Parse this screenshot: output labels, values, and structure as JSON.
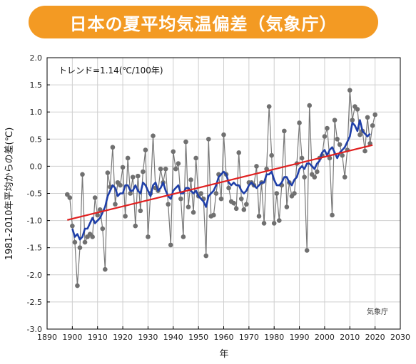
{
  "banner": {
    "title": "日本の夏平均気温偏差（気象庁）"
  },
  "chart_data": {
    "type": "line",
    "ylabel": "1981-2010年平均からの差(℃)",
    "xlabel": "年",
    "annotation": "トレンド=1.14(℃/100年)",
    "credit": "気象庁",
    "xlim": [
      1890,
      2030
    ],
    "ylim": [
      -3.0,
      2.0
    ],
    "x_ticks": [
      1890,
      1900,
      1910,
      1920,
      1930,
      1940,
      1950,
      1960,
      1970,
      1980,
      1990,
      2000,
      2010,
      2020,
      2030
    ],
    "y_ticks": [
      -3.0,
      -2.5,
      -2.0,
      -1.5,
      -1.0,
      -0.5,
      0.0,
      0.5,
      1.0,
      1.5,
      2.0
    ],
    "x_tick_labels": [
      "1890",
      "1900",
      "1910",
      "1920",
      "1930",
      "1940",
      "1950",
      "1960",
      "1970",
      "1980",
      "1990",
      "2000",
      "2010",
      "2020",
      "2030"
    ],
    "y_tick_labels": [
      "-3.0",
      "-2.5",
      "-2.0",
      "-1.5",
      "-1.0",
      "-0.5",
      "0.0",
      "0.5",
      "1.0",
      "1.5",
      "2.0"
    ],
    "grid": true,
    "colors": {
      "annual": "#777777",
      "moving_average": "#1f3fa8",
      "trend": "#e02020",
      "banner": "#f39a23"
    },
    "annual": {
      "x": [
        1898,
        1899,
        1900,
        1901,
        1902,
        1903,
        1904,
        1905,
        1906,
        1907,
        1908,
        1909,
        1910,
        1911,
        1912,
        1913,
        1914,
        1915,
        1916,
        1917,
        1918,
        1919,
        1920,
        1921,
        1922,
        1923,
        1924,
        1925,
        1926,
        1927,
        1928,
        1929,
        1930,
        1931,
        1932,
        1933,
        1934,
        1935,
        1936,
        1937,
        1938,
        1939,
        1940,
        1941,
        1942,
        1943,
        1944,
        1945,
        1946,
        1947,
        1948,
        1949,
        1950,
        1951,
        1952,
        1953,
        1954,
        1955,
        1956,
        1957,
        1958,
        1959,
        1960,
        1961,
        1962,
        1963,
        1964,
        1965,
        1966,
        1967,
        1968,
        1969,
        1970,
        1971,
        1972,
        1973,
        1974,
        1975,
        1976,
        1977,
        1978,
        1979,
        1980,
        1981,
        1982,
        1983,
        1984,
        1985,
        1986,
        1987,
        1988,
        1989,
        1990,
        1991,
        1992,
        1993,
        1994,
        1995,
        1996,
        1997,
        1998,
        1999,
        2000,
        2001,
        2002,
        2003,
        2004,
        2005,
        2006,
        2007,
        2008,
        2009,
        2010,
        2011,
        2012,
        2013,
        2014,
        2015,
        2016,
        2017,
        2018,
        2019,
        2020
      ],
      "y": [
        -0.52,
        -0.58,
        -1.1,
        -1.4,
        -2.2,
        -1.5,
        -0.15,
        -1.4,
        -1.3,
        -1.25,
        -1.3,
        -0.58,
        -0.9,
        -0.8,
        -1.15,
        -1.9,
        -0.12,
        -0.38,
        0.35,
        -0.7,
        -0.3,
        -0.35,
        -0.02,
        -0.92,
        0.15,
        -0.5,
        -0.2,
        -1.1,
        -0.18,
        -0.82,
        -0.1,
        0.3,
        -1.3,
        -0.5,
        0.56,
        -0.4,
        -0.45,
        -0.05,
        -0.3,
        -0.05,
        -0.7,
        -1.45,
        0.27,
        -0.05,
        0.05,
        -0.6,
        -1.3,
        0.45,
        -0.75,
        -0.25,
        -0.85,
        0.15,
        -0.55,
        -0.5,
        -0.6,
        -1.65,
        0.5,
        -0.92,
        -0.9,
        -0.5,
        -0.15,
        -0.6,
        0.58,
        -0.15,
        -0.4,
        -0.65,
        -0.68,
        -0.78,
        0.25,
        -0.6,
        -0.8,
        -0.7,
        -0.3,
        -0.3,
        -0.35,
        0.0,
        -0.92,
        -0.3,
        -1.05,
        -0.05,
        1.1,
        0.2,
        -1.05,
        -0.5,
        -1.0,
        -0.35,
        0.65,
        -0.75,
        -0.3,
        -0.55,
        -0.5,
        0.05,
        0.8,
        0.15,
        -0.2,
        -1.55,
        1.12,
        -0.15,
        -0.2,
        -0.1,
        0.15,
        0.2,
        0.55,
        0.7,
        0.15,
        -0.9,
        0.85,
        0.5,
        0.4,
        0.2,
        -0.2,
        0.3,
        1.4,
        0.85,
        1.1,
        1.05,
        0.58,
        0.65,
        0.28,
        0.9,
        0.42,
        0.75,
        0.95
      ]
    },
    "moving_average": {
      "x": [
        1900,
        1901,
        1902,
        1903,
        1904,
        1905,
        1906,
        1907,
        1908,
        1909,
        1910,
        1911,
        1912,
        1913,
        1914,
        1915,
        1916,
        1917,
        1918,
        1919,
        1920,
        1921,
        1922,
        1923,
        1924,
        1925,
        1926,
        1927,
        1928,
        1929,
        1930,
        1931,
        1932,
        1933,
        1934,
        1935,
        1936,
        1937,
        1938,
        1939,
        1940,
        1941,
        1942,
        1943,
        1944,
        1945,
        1946,
        1947,
        1948,
        1949,
        1950,
        1951,
        1952,
        1953,
        1954,
        1955,
        1956,
        1957,
        1958,
        1959,
        1960,
        1961,
        1962,
        1963,
        1964,
        1965,
        1966,
        1967,
        1968,
        1969,
        1970,
        1971,
        1972,
        1973,
        1974,
        1975,
        1976,
        1977,
        1978,
        1979,
        1980,
        1981,
        1982,
        1983,
        1984,
        1985,
        1986,
        1987,
        1988,
        1989,
        1990,
        1991,
        1992,
        1993,
        1994,
        1995,
        1996,
        1997,
        1998,
        1999,
        2000,
        2001,
        2002,
        2003,
        2004,
        2005,
        2006,
        2007,
        2008,
        2009,
        2010,
        2011,
        2012,
        2013,
        2014,
        2015,
        2016,
        2017,
        2018
      ],
      "y": [
        -1.15,
        -1.3,
        -1.25,
        -1.35,
        -1.3,
        -1.15,
        -1.15,
        -1.05,
        -0.95,
        -1.05,
        -1.0,
        -0.95,
        -0.85,
        -0.75,
        -0.55,
        -0.45,
        -0.35,
        -0.4,
        -0.55,
        -0.5,
        -0.5,
        -0.35,
        -0.35,
        -0.45,
        -0.45,
        -0.35,
        -0.45,
        -0.5,
        -0.3,
        -0.35,
        -0.45,
        -0.55,
        -0.35,
        -0.3,
        -0.45,
        -0.4,
        -0.3,
        -0.45,
        -0.55,
        -0.6,
        -0.45,
        -0.4,
        -0.35,
        -0.5,
        -0.5,
        -0.4,
        -0.4,
        -0.45,
        -0.5,
        -0.45,
        -0.55,
        -0.6,
        -0.65,
        -0.75,
        -0.55,
        -0.5,
        -0.45,
        -0.35,
        -0.2,
        -0.15,
        -0.1,
        -0.15,
        -0.3,
        -0.35,
        -0.3,
        -0.35,
        -0.35,
        -0.45,
        -0.5,
        -0.45,
        -0.35,
        -0.3,
        -0.35,
        -0.4,
        -0.35,
        -0.3,
        -0.3,
        -0.15,
        -0.15,
        -0.1,
        -0.25,
        -0.35,
        -0.35,
        -0.3,
        -0.2,
        -0.2,
        -0.3,
        -0.35,
        -0.25,
        -0.2,
        -0.05,
        0.0,
        -0.05,
        0.05,
        0.05,
        0.0,
        -0.05,
        0.05,
        0.1,
        0.25,
        0.3,
        0.2,
        0.3,
        0.35,
        0.25,
        0.15,
        0.25,
        0.3,
        0.35,
        0.45,
        0.55,
        0.8,
        0.75,
        0.65,
        0.85,
        0.65,
        0.6,
        0.55,
        0.6
      ]
    },
    "trend": {
      "x": [
        1898,
        2019
      ],
      "y": [
        -0.99,
        0.39
      ]
    }
  }
}
